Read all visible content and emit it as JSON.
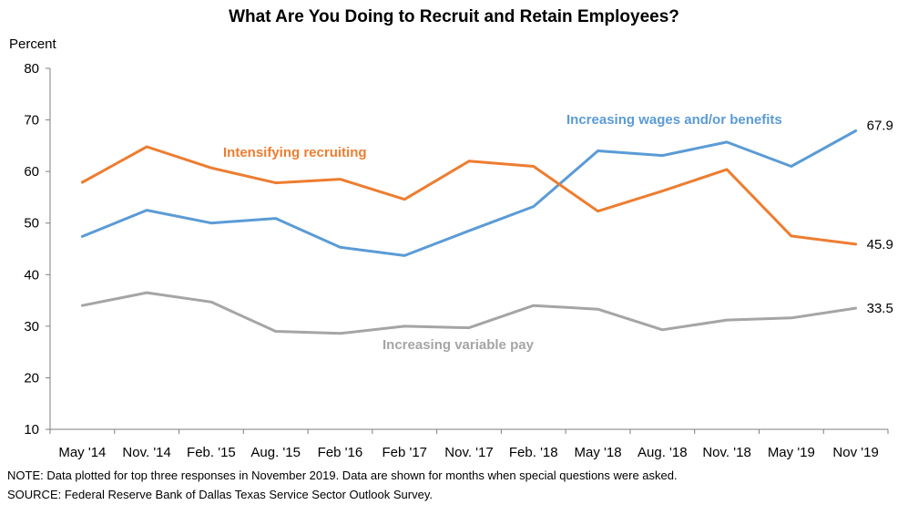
{
  "chart_data": {
    "type": "line",
    "title": "What Are You Doing to Recruit and Retain Employees?",
    "ylabel": "Percent",
    "xlabel": "",
    "ylim": [
      10,
      80
    ],
    "yticks": [
      10,
      20,
      30,
      40,
      50,
      60,
      70,
      80
    ],
    "grid": false,
    "legend": "inline labels",
    "categories": [
      "May '14",
      "Nov. '14",
      "Feb. '15",
      "Aug. '15",
      "Feb '16",
      "Feb '17",
      "Nov. '17",
      "Feb. '18",
      "May '18",
      "Aug. '18",
      "Nov. '18",
      "May '19",
      "Nov '19"
    ],
    "series": [
      {
        "name": "Increasing wages and/or benefits",
        "color": "#5b9bd5",
        "values": [
          47.4,
          52.5,
          50.0,
          50.9,
          45.3,
          43.7,
          48.5,
          53.2,
          64.0,
          63.1,
          65.7,
          61.0,
          67.9
        ],
        "end_label": "67.9"
      },
      {
        "name": "Intensifying recruiting",
        "color": "#ed7d31",
        "values": [
          57.9,
          64.8,
          60.7,
          57.8,
          58.5,
          54.6,
          62.0,
          61.0,
          52.3,
          56.2,
          60.4,
          47.5,
          45.9
        ],
        "end_label": "45.9"
      },
      {
        "name": "Increasing variable pay",
        "color": "#a5a5a5",
        "values": [
          34.0,
          36.5,
          34.7,
          29.0,
          28.6,
          30.0,
          29.7,
          34.0,
          33.3,
          29.3,
          31.2,
          31.6,
          33.5
        ],
        "end_label": "33.5"
      }
    ]
  },
  "notes": {
    "note": "NOTE: Data plotted for top three responses in November 2019. Data are shown for months  when special questions were asked.",
    "source": "SOURCE: Federal Reserve Bank of Dallas Texas Service Sector Outlook Survey."
  }
}
